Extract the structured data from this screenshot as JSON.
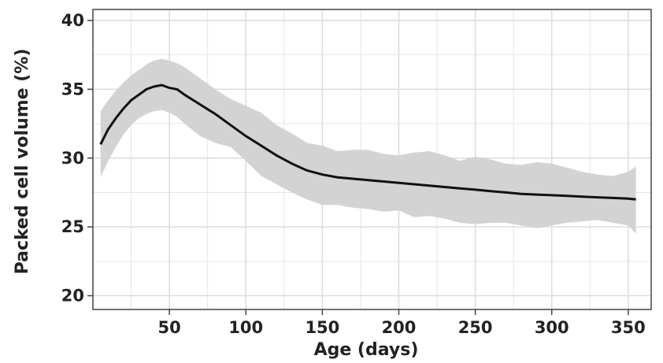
{
  "chart_data": {
    "type": "line",
    "title": "",
    "xlabel": "Age (days)",
    "ylabel": "Packed cell volume (%)",
    "xlim": [
      0,
      365
    ],
    "ylim": [
      19,
      40.8
    ],
    "xticks": [
      50,
      100,
      150,
      200,
      250,
      300,
      350
    ],
    "yticks": [
      20,
      25,
      30,
      35,
      40
    ],
    "xtick_labels": [
      "50",
      "100",
      "150",
      "200",
      "250",
      "300",
      "350"
    ],
    "ytick_labels": [
      "20",
      "25",
      "30",
      "35",
      "40"
    ],
    "grid": true,
    "colors": {
      "line": "#111111",
      "band": "#d3d3d3",
      "grid": "#e4e4e4",
      "frame": "#444444"
    },
    "series": [
      {
        "x": [
          5,
          10,
          15,
          20,
          25,
          30,
          35,
          40,
          45,
          50,
          55,
          60,
          70,
          80,
          90,
          100,
          110,
          120,
          130,
          140,
          150,
          160,
          170,
          180,
          190,
          200,
          210,
          220,
          230,
          240,
          250,
          260,
          270,
          280,
          290,
          300,
          310,
          320,
          330,
          340,
          350,
          355
        ],
        "y": [
          31.0,
          32.1,
          32.9,
          33.6,
          34.2,
          34.6,
          35.0,
          35.2,
          35.3,
          35.1,
          35.0,
          34.6,
          33.9,
          33.2,
          32.4,
          31.6,
          30.9,
          30.2,
          29.6,
          29.1,
          28.8,
          28.6,
          28.5,
          28.4,
          28.3,
          28.2,
          28.1,
          28.0,
          27.9,
          27.8,
          27.7,
          27.6,
          27.5,
          27.4,
          27.35,
          27.3,
          27.25,
          27.2,
          27.15,
          27.1,
          27.05,
          27.0
        ],
        "lower": [
          28.6,
          29.8,
          30.8,
          31.7,
          32.4,
          32.9,
          33.2,
          33.4,
          33.5,
          33.3,
          33.0,
          32.5,
          31.6,
          31.1,
          30.8,
          29.8,
          28.7,
          28.1,
          27.5,
          27.0,
          26.6,
          26.6,
          26.4,
          26.3,
          26.1,
          26.2,
          25.7,
          25.8,
          25.6,
          25.3,
          25.2,
          25.3,
          25.3,
          25.1,
          24.9,
          25.1,
          25.3,
          25.4,
          25.5,
          25.3,
          25.1,
          24.5
        ],
        "upper": [
          33.4,
          34.2,
          34.9,
          35.5,
          36.0,
          36.4,
          36.8,
          37.1,
          37.2,
          37.1,
          36.9,
          36.6,
          35.8,
          35.0,
          34.3,
          33.8,
          33.3,
          32.4,
          31.8,
          31.1,
          30.9,
          30.5,
          30.6,
          30.6,
          30.3,
          30.2,
          30.4,
          30.5,
          30.2,
          29.8,
          30.1,
          29.9,
          29.6,
          29.5,
          29.7,
          29.6,
          29.3,
          29.0,
          28.8,
          28.7,
          29.0,
          29.4
        ]
      }
    ]
  }
}
